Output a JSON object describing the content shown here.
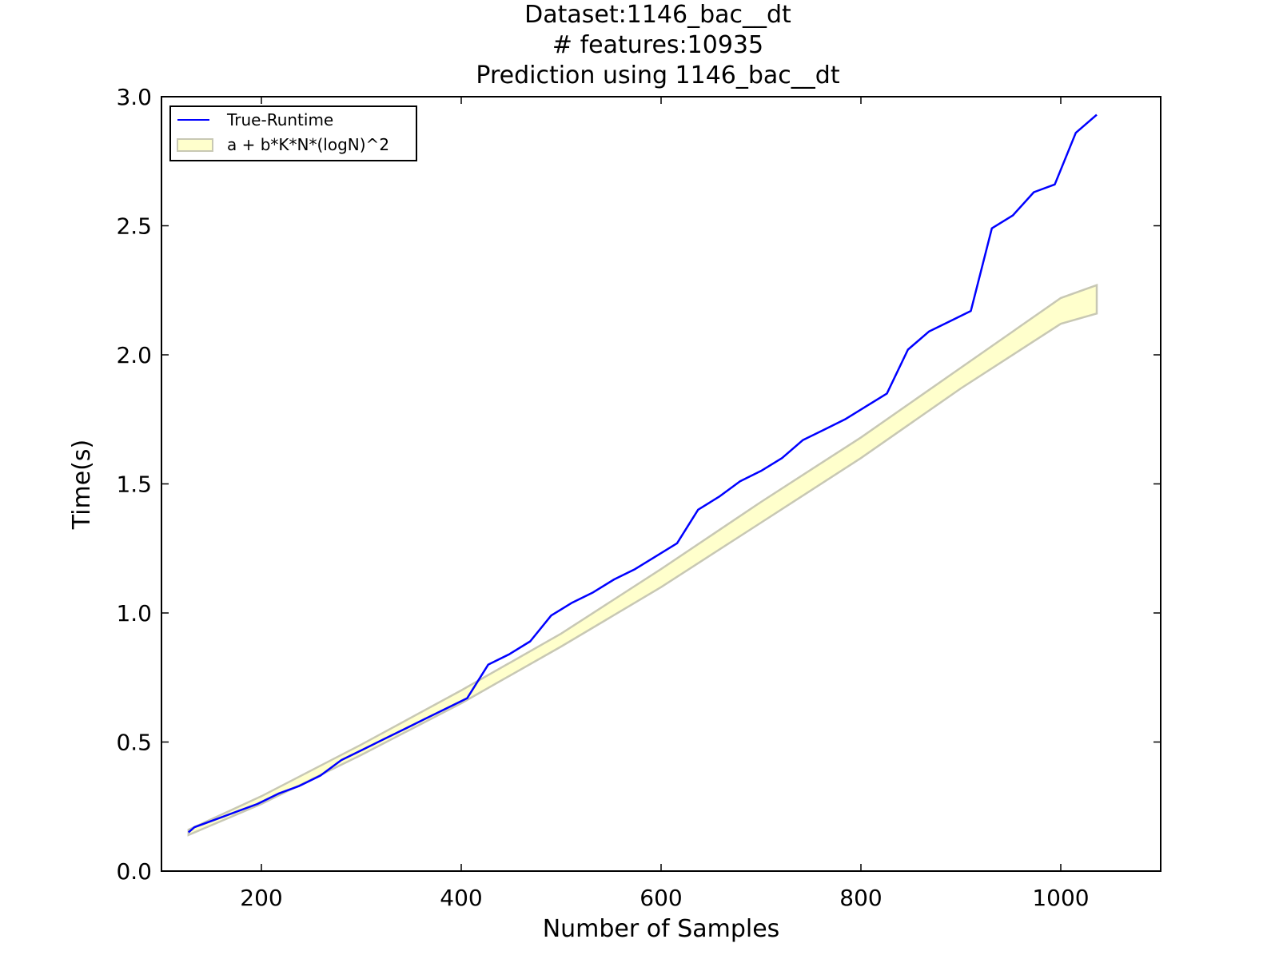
{
  "chart_data": {
    "type": "line",
    "title_lines": [
      "Dataset:1146_bac__dt",
      "# features:10935",
      "Prediction using 1146_bac__dt"
    ],
    "xlabel": "Number of Samples",
    "ylabel": "Time(s)",
    "xlim": [
      100,
      1100
    ],
    "ylim": [
      0.0,
      3.0
    ],
    "x_ticks": [
      200,
      400,
      600,
      800,
      1000
    ],
    "x_tick_labels": [
      "200",
      "400",
      "600",
      "800",
      "1000"
    ],
    "y_ticks": [
      0.0,
      0.5,
      1.0,
      1.5,
      2.0,
      2.5,
      3.0
    ],
    "y_tick_labels": [
      "0.0",
      "0.5",
      "1.0",
      "1.5",
      "2.0",
      "2.5",
      "3.0"
    ],
    "grid": false,
    "legend_position": "upper-left",
    "colors": {
      "true_runtime": "#0000ff",
      "band_fill": "#ffffcc",
      "band_edge": "#c8c8b4"
    },
    "series": [
      {
        "name": "True-Runtime",
        "kind": "line",
        "x": [
          127,
          133,
          154,
          175,
          196,
          217,
          238,
          259,
          280,
          301,
          322,
          343,
          364,
          385,
          406,
          427,
          448,
          469,
          490,
          511,
          532,
          553,
          574,
          595,
          616,
          637,
          658,
          679,
          700,
          721,
          742,
          763,
          784,
          805,
          826,
          847,
          868,
          889,
          910,
          931,
          952,
          973,
          994,
          1015,
          1036
        ],
        "y": [
          0.15,
          0.17,
          0.2,
          0.23,
          0.26,
          0.3,
          0.33,
          0.37,
          0.43,
          0.47,
          0.51,
          0.55,
          0.59,
          0.63,
          0.67,
          0.8,
          0.84,
          0.89,
          0.99,
          1.04,
          1.08,
          1.13,
          1.17,
          1.22,
          1.27,
          1.4,
          1.45,
          1.51,
          1.55,
          1.6,
          1.67,
          1.71,
          1.75,
          1.8,
          1.85,
          2.02,
          2.09,
          2.13,
          2.17,
          2.49,
          2.54,
          2.63,
          2.66,
          2.86,
          2.93
        ]
      },
      {
        "name": "a + b*K*N*(logN)^2",
        "kind": "band",
        "x": [
          127,
          200,
          300,
          400,
          500,
          600,
          700,
          800,
          900,
          1000,
          1036
        ],
        "y_lower": [
          0.14,
          0.26,
          0.45,
          0.65,
          0.87,
          1.1,
          1.35,
          1.6,
          1.87,
          2.12,
          2.16
        ],
        "y_upper": [
          0.16,
          0.29,
          0.49,
          0.7,
          0.92,
          1.17,
          1.43,
          1.68,
          1.95,
          2.22,
          2.27
        ]
      }
    ]
  }
}
